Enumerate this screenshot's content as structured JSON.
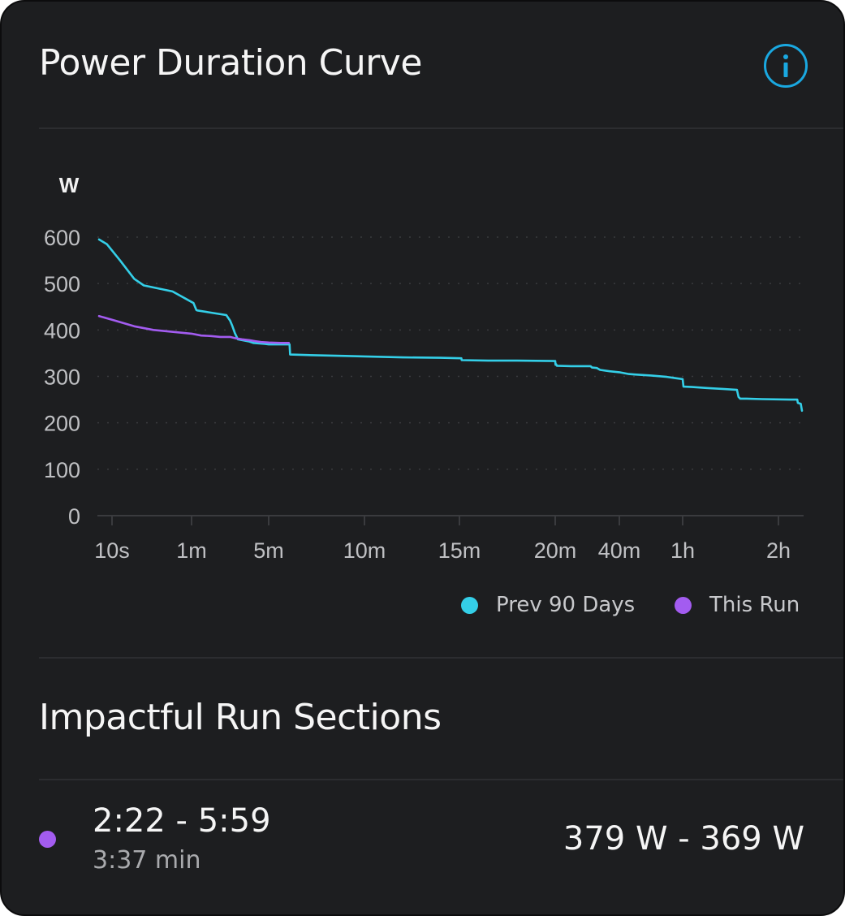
{
  "card": {
    "title": "Power Duration Curve",
    "info_icon": "info-circle-icon",
    "accent_color": "#1aa8e0"
  },
  "chart_data": {
    "type": "line",
    "ylabel": "W",
    "ylim": [
      0,
      600
    ],
    "yticks": [
      "0",
      "100",
      "200",
      "300",
      "400",
      "500",
      "600"
    ],
    "xticks": [
      "10s",
      "1m",
      "5m",
      "10m",
      "15m",
      "20m",
      "40m",
      "1h",
      "2h"
    ],
    "grid": "horizontal dotted",
    "legend_position": "bottom-right",
    "series": [
      {
        "name": "Prev 90 Days",
        "color": "#34cfe8",
        "points": [
          [
            0,
            595
          ],
          [
            0.1,
            585
          ],
          [
            0.25,
            550
          ],
          [
            0.4,
            510
          ],
          [
            0.5,
            496
          ],
          [
            0.8,
            483
          ],
          [
            1.1,
            458
          ],
          [
            1.25,
            443
          ],
          [
            1.3,
            442
          ],
          [
            1.9,
            438
          ],
          [
            2.8,
            432
          ],
          [
            3.0,
            420
          ],
          [
            3.1,
            410
          ],
          [
            3.25,
            393
          ],
          [
            3.4,
            380
          ],
          [
            4.0,
            375
          ],
          [
            4.2,
            372
          ],
          [
            4.8,
            370
          ],
          [
            5.0,
            369
          ],
          [
            6.09,
            369
          ],
          [
            6.12,
            347
          ],
          [
            7.0,
            346
          ],
          [
            9.0,
            344
          ],
          [
            10.0,
            343
          ],
          [
            12.0,
            341
          ],
          [
            14.0,
            340
          ],
          [
            15.1,
            339
          ],
          [
            15.12,
            335
          ],
          [
            16.5,
            334
          ],
          [
            18.0,
            334
          ],
          [
            20.0,
            333
          ],
          [
            20.1,
            325
          ],
          [
            20.3,
            326
          ],
          [
            20.5,
            323
          ],
          [
            25.0,
            322
          ],
          [
            31.0,
            322
          ],
          [
            31.5,
            319
          ],
          [
            33.0,
            318
          ],
          [
            34.0,
            314
          ],
          [
            37.0,
            311
          ],
          [
            40.0,
            309
          ],
          [
            43.0,
            305
          ],
          [
            45.0,
            304
          ],
          [
            50.0,
            302
          ],
          [
            55.0,
            299
          ],
          [
            58.0,
            296
          ],
          [
            60.0,
            294
          ],
          [
            60.5,
            278
          ],
          [
            66.0,
            277
          ],
          [
            75.0,
            275
          ],
          [
            85.0,
            273
          ],
          [
            94.0,
            271
          ],
          [
            95.0,
            256
          ],
          [
            96.0,
            252
          ],
          [
            100.0,
            252
          ],
          [
            110.0,
            251
          ],
          [
            130.0,
            250
          ],
          [
            136.0,
            250
          ],
          [
            136.5,
            243
          ],
          [
            139.0,
            241
          ],
          [
            140.0,
            226
          ]
        ]
      },
      {
        "name": "This Run",
        "color": "#a35cf0",
        "points": [
          [
            0,
            430
          ],
          [
            0.2,
            420
          ],
          [
            0.4,
            408
          ],
          [
            0.6,
            400
          ],
          [
            1.0,
            392
          ],
          [
            1.5,
            388
          ],
          [
            2.0,
            387
          ],
          [
            2.5,
            385
          ],
          [
            3.0,
            385
          ],
          [
            3.3,
            382
          ],
          [
            3.6,
            380
          ],
          [
            4.0,
            378
          ],
          [
            4.3,
            376
          ],
          [
            4.6,
            374
          ],
          [
            5.0,
            373
          ],
          [
            5.6,
            372
          ],
          [
            6.05,
            372
          ]
        ]
      }
    ]
  },
  "legend": {
    "prev_label": "Prev 90 Days",
    "run_label": "This Run"
  },
  "sections": {
    "title": "Impactful Run Sections",
    "items": [
      {
        "range": "2:22 - 5:59",
        "duration": "3:37 min",
        "watts": "379 W - 369 W",
        "color": "#a35cf0"
      }
    ]
  }
}
